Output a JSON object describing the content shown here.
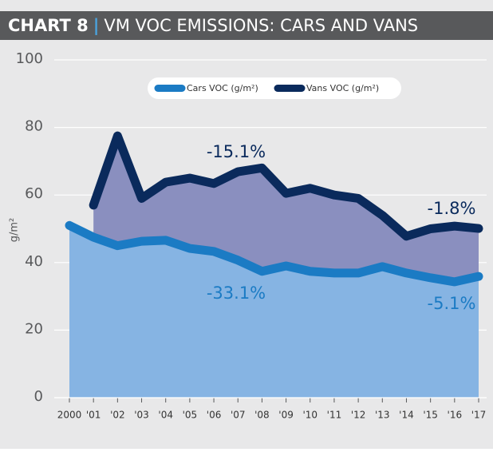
{
  "chart_data": {
    "type": "line",
    "title_prefix": "CHART 8",
    "separator": "|",
    "title": "VM VOC EMISSIONS: CARS AND VANS",
    "y_label": "g/m²",
    "categories": [
      "2000",
      "'01",
      "'02",
      "'03",
      "'04",
      "'05",
      "'06",
      "'07",
      "'08",
      "'09",
      "'10",
      "'11",
      "'12",
      "'13",
      "'14",
      "'15",
      "'16",
      "'17"
    ],
    "series": [
      {
        "name": "Cars VOC (g/m²)",
        "color": "#1b7bc4",
        "fill": "#86b4e3",
        "values": [
          51,
          47.5,
          45,
          46.3,
          46.6,
          44.2,
          43.3,
          40.7,
          37.4,
          39,
          37.4,
          36.9,
          36.9,
          38.8,
          36.9,
          35.5,
          34.3,
          35.9
        ]
      },
      {
        "name": "Vans VOC (g/m²)",
        "color": "#0a2a5c",
        "fill": "#8a8fbf",
        "values": [
          null,
          57,
          77.5,
          59,
          63.8,
          65,
          63.4,
          66.9,
          68,
          60.5,
          62,
          60,
          59,
          54,
          47.8,
          50,
          50.8,
          50.1
        ]
      }
    ],
    "annotations": [
      {
        "text": "-15.1%",
        "color": "#0a2a5c"
      },
      {
        "text": "-33.1%",
        "color": "#1b7bc4"
      },
      {
        "text": "-1.8%",
        "color": "#0a2a5c"
      },
      {
        "text": "-5.1%",
        "color": "#1b7bc4"
      }
    ],
    "ylim": [
      0,
      100
    ],
    "yticks": [
      0,
      20,
      40,
      60,
      80,
      100
    ],
    "grid": true,
    "legend": "top"
  }
}
